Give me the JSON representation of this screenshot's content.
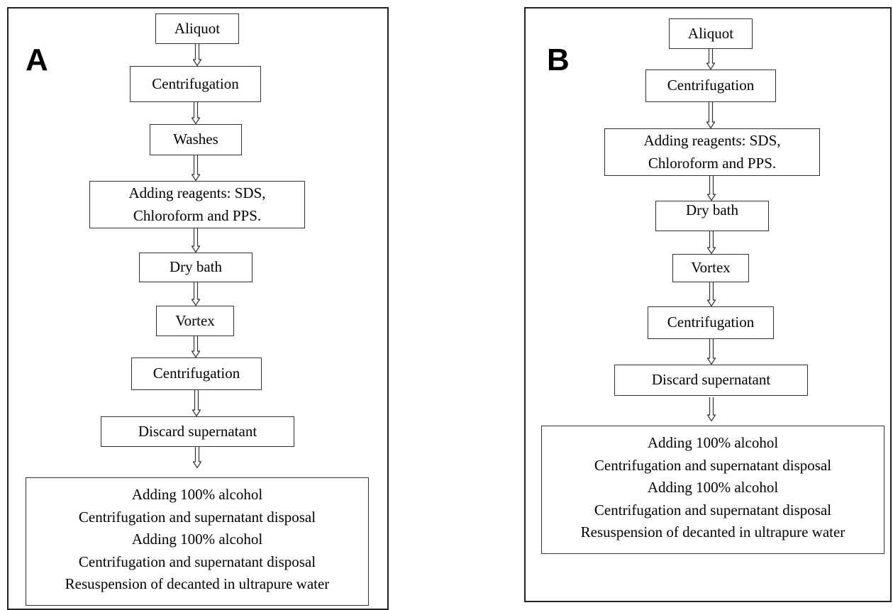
{
  "panel_a": {
    "letter": "A",
    "steps": {
      "aliquot": "Aliquot",
      "centrifugation_1": "Centrifugation",
      "washes": "Washes",
      "reagents_line1": "Adding reagents: SDS,",
      "reagents_line2": "Chloroform and PPS.",
      "dry_bath": "Dry bath",
      "vortex": "Vortex",
      "centrifugation_2": "Centrifugation",
      "discard": "Discard supernatant"
    },
    "final": [
      "Adding 100% alcohol",
      "Centrifugation and supernatant disposal",
      "Adding 100% alcohol",
      "Centrifugation and supernatant disposal",
      "Resuspension of decanted in ultrapure water"
    ]
  },
  "panel_b": {
    "letter": "B",
    "steps": {
      "aliquot": "Aliquot",
      "centrifugation_1": "Centrifugation",
      "reagents_line1": "Adding reagents: SDS,",
      "reagents_line2": "Chloroform and PPS.",
      "dry_bath": "Dry bath",
      "vortex": "Vortex",
      "centrifugation_2": "Centrifugation",
      "discard": "Discard supernatant"
    },
    "final": [
      "Adding 100% alcohol",
      "Centrifugation and supernatant disposal",
      "Adding 100% alcohol",
      "Centrifugation and supernatant disposal",
      "Resuspension of decanted in ultrapure water"
    ]
  }
}
